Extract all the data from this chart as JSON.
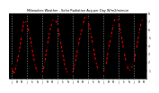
{
  "title": "Milwaukee Weather - Solar Radiation Avg per Day W/m2/minute",
  "line_color": "#ff0000",
  "marker_color": "#000000",
  "background_color": "#ffffff",
  "plot_bg_color": "#000000",
  "grid_color": "#888888",
  "ylim": [
    0,
    8
  ],
  "yticks": [
    1,
    2,
    3,
    4,
    5,
    6,
    7,
    8
  ],
  "values": [
    1.5,
    0.5,
    1.8,
    3.2,
    5.5,
    7.2,
    6.8,
    5.5,
    3.8,
    2.0,
    0.8,
    0.4,
    0.6,
    1.8,
    4.0,
    5.8,
    7.0,
    7.5,
    6.5,
    5.0,
    3.2,
    1.5,
    0.7,
    0.3,
    0.7,
    2.0,
    3.8,
    5.2,
    6.5,
    7.8,
    7.2,
    5.8,
    4.0,
    2.2,
    1.0,
    0.5,
    0.8,
    1.5,
    3.5,
    5.0,
    6.8,
    7.6,
    7.0,
    5.5,
    3.5,
    2.0,
    0.9,
    1.2,
    2.0,
    3.5,
    5.5,
    7.0,
    7.5
  ],
  "n_grid_lines": 9,
  "grid_positions": [
    0,
    6,
    12,
    18,
    24,
    30,
    36,
    42,
    48
  ]
}
